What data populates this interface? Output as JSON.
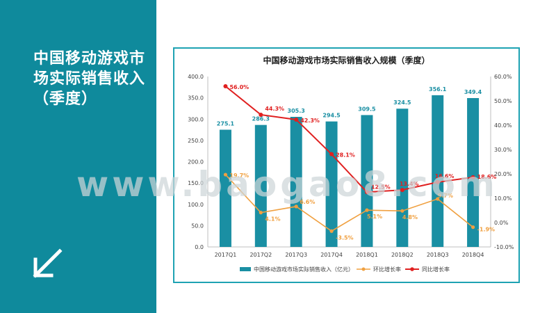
{
  "side_title": "中国移动游戏市场实际销售收入（季度）",
  "accent_color": "#0f8a9c",
  "watermark": "www.baogao8.com",
  "chart_data": {
    "type": "bar",
    "title": "中国移动游戏市场实际销售收入规模（季度）",
    "categories": [
      "2017Q1",
      "2017Q2",
      "2017Q3",
      "2017Q4",
      "2018Q1",
      "2018Q2",
      "2018Q3",
      "2018Q4"
    ],
    "ylim": [
      0,
      400
    ],
    "y_ticks": [
      "0.0",
      "50.0",
      "100.0",
      "150.0",
      "200.0",
      "250.0",
      "300.0",
      "350.0",
      "400.0"
    ],
    "y2lim": [
      -10,
      60
    ],
    "y2_ticks": [
      "-10.0%",
      "0.0%",
      "10.0%",
      "20.0%",
      "30.0%",
      "40.0%",
      "50.0%",
      "60.0%"
    ],
    "series": [
      {
        "name": "中国移动游戏市场实际销售收入（亿元）",
        "type": "bar",
        "color": "#1a8fa3",
        "values": [
          275.1,
          286.3,
          305.3,
          294.5,
          309.5,
          324.5,
          356.1,
          349.4
        ],
        "labels": [
          "275.1",
          "286.3",
          "305.3",
          "294.5",
          "309.5",
          "324.5",
          "356.1",
          "349.4"
        ]
      },
      {
        "name": "环比增长率",
        "type": "line",
        "axis": "right",
        "color": "#f0a040",
        "values": [
          19.7,
          4.1,
          6.6,
          -3.5,
          5.1,
          4.8,
          9.7,
          -1.9
        ],
        "labels": [
          "19.7%",
          "4.1%",
          "6.6%",
          "-3.5%",
          "5.1%",
          "4.8%",
          "9.7%",
          "-1.9%"
        ]
      },
      {
        "name": "同比增长率",
        "type": "line",
        "axis": "right",
        "color": "#e02020",
        "values": [
          56.0,
          44.3,
          42.3,
          28.1,
          12.5,
          13.4,
          16.6,
          18.6
        ],
        "labels": [
          "56.0%",
          "44.3%",
          "42.3%",
          "28.1%",
          "12.5%",
          "13.4%",
          "16.6%",
          "18.6%"
        ]
      }
    ],
    "legend_position": "bottom",
    "grid": false
  }
}
